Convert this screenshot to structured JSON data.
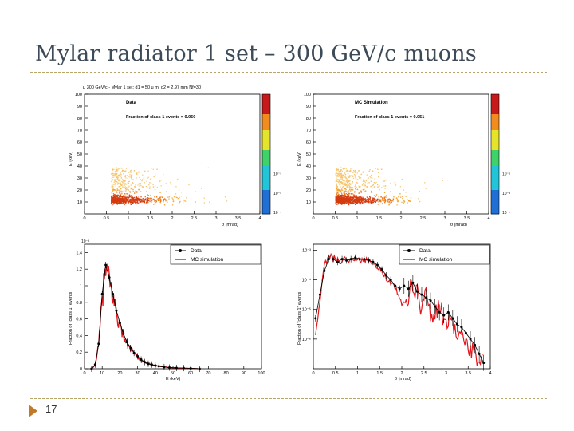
{
  "slide": {
    "title": "Mylar radiator 1 set – 300 GeV/c muons",
    "page_number": "17"
  },
  "colors": {
    "title": "#3d4a57",
    "rule": "#b9a46a",
    "arrow": "#c07a2a",
    "data_series": "#000000",
    "mc_series": "#e3161b"
  },
  "chart_data": [
    {
      "type": "heatmap",
      "panel_title": "μ 300 GeV/c - Mylar 1 set: d1 = 50 μ m, d2 = 2.97 mm Nf=30",
      "label": "Data",
      "fraction_text": "Fraction of class 1 events = 0.050",
      "xlabel": "θ (mrad)",
      "ylabel": "E (keV)",
      "xlim": [
        0,
        4
      ],
      "ylim": [
        0,
        100
      ],
      "x_ticks": [
        "0",
        "0.5",
        "1",
        "1.5",
        "2",
        "2.5",
        "3",
        "3.5",
        "4"
      ],
      "y_ticks": [
        "10",
        "20",
        "30",
        "40",
        "50",
        "60",
        "70",
        "80",
        "90",
        "100"
      ],
      "colorbar_labels": [
        "10⁻⁵",
        "10⁻⁶",
        "10⁻⁷"
      ],
      "colorbar_log_values": [
        -5,
        -6,
        -7
      ],
      "density_centre": {
        "theta": 0.6,
        "E": 12
      }
    },
    {
      "type": "heatmap",
      "label": "MC Simulation",
      "fraction_text": "Fraction of class 1 events = 0.051",
      "xlabel": "θ (mrad)",
      "ylabel": "E (keV)",
      "xlim": [
        0,
        4
      ],
      "ylim": [
        0,
        100
      ],
      "x_ticks": [
        "0",
        "0.5",
        "1",
        "1.5",
        "2",
        "2.5",
        "3",
        "3.5",
        "4"
      ],
      "y_ticks": [
        "10",
        "20",
        "30",
        "40",
        "50",
        "60",
        "70",
        "80",
        "90",
        "100"
      ],
      "colorbar_labels": [
        "10⁻⁵",
        "10⁻⁶",
        "10⁻⁷"
      ],
      "colorbar_log_values": [
        -5,
        -6,
        -7
      ],
      "density_centre": {
        "theta": 0.5,
        "E": 12
      }
    },
    {
      "type": "line",
      "xlabel": "E (keV)",
      "ylabel": "Fraction of \"class 1\" events",
      "y_multiplier": "10⁻³",
      "xlim": [
        0,
        100
      ],
      "ylim": [
        0,
        0.0015
      ],
      "x_ticks": [
        "0",
        "10",
        "20",
        "30",
        "40",
        "50",
        "60",
        "70",
        "80",
        "90",
        "100"
      ],
      "y_ticks": [
        "0",
        "0.2",
        "0.4",
        "0.6",
        "0.8",
        "1",
        "1.2",
        "1.4"
      ],
      "legend": [
        "Data",
        "MC simulation"
      ],
      "series": [
        {
          "name": "Data",
          "x": [
            4,
            6,
            8,
            10,
            12,
            14,
            16,
            18,
            20,
            22,
            24,
            26,
            28,
            30,
            32,
            34,
            36,
            38,
            40,
            42,
            45,
            48,
            52,
            56,
            60,
            65
          ],
          "values": [
            0.0,
            5e-05,
            0.0003,
            0.0009,
            0.00125,
            0.0011,
            0.0009,
            0.0007,
            0.00055,
            0.00042,
            0.00032,
            0.00025,
            0.00019,
            0.00015,
            0.00011,
            8e-05,
            6e-05,
            5e-05,
            4e-05,
            3e-05,
            2e-05,
            1.5e-05,
            1e-05,
            8e-06,
            5e-06,
            0.0
          ]
        },
        {
          "name": "MC simulation",
          "x": [
            4,
            6,
            8,
            10,
            12,
            14,
            16,
            18,
            20,
            22,
            24,
            26,
            28,
            30,
            32,
            34,
            36,
            38,
            40,
            42,
            45,
            48,
            52,
            56,
            60,
            65
          ],
          "values": [
            0.0,
            4e-05,
            0.00028,
            0.00085,
            0.0012,
            0.00105,
            0.00088,
            0.00068,
            0.00052,
            0.0004,
            0.0003,
            0.00024,
            0.00018,
            0.00014,
            0.0001,
            8e-05,
            6e-05,
            5e-05,
            3.5e-05,
            3e-05,
            2e-05,
            1.5e-05,
            1e-05,
            6e-06,
            4e-06,
            0.0
          ]
        }
      ]
    },
    {
      "type": "line",
      "xlabel": "θ (mrad)",
      "ylabel": "Fraction of \"class 1\" events",
      "y_scale": "log",
      "xlim": [
        0,
        4
      ],
      "ylim_log10": [
        -7,
        -2.8
      ],
      "x_ticks": [
        "0",
        "0.5",
        "1",
        "1.5",
        "2",
        "2.5",
        "3",
        "3.5",
        "4"
      ],
      "y_ticks": [
        "10⁻³",
        "10⁻⁴",
        "10⁻⁵",
        "10⁻⁶"
      ],
      "y_tick_log_values": [
        -3,
        -4,
        -5,
        -6
      ],
      "legend": [
        "Data",
        "MC simulation"
      ],
      "series": [
        {
          "name": "Data",
          "x": [
            0.05,
            0.15,
            0.25,
            0.35,
            0.45,
            0.55,
            0.65,
            0.75,
            0.85,
            0.95,
            1.05,
            1.15,
            1.25,
            1.35,
            1.45,
            1.55,
            1.65,
            1.75,
            1.85,
            1.95,
            2.05,
            2.15,
            2.25,
            2.35,
            2.45,
            2.55,
            2.65,
            2.75,
            2.85,
            2.95,
            3.05,
            3.15,
            3.25,
            3.35,
            3.45,
            3.55,
            3.65,
            3.75,
            3.85
          ],
          "log10_values": [
            -5.3,
            -4.5,
            -3.7,
            -3.3,
            -3.3,
            -3.4,
            -3.3,
            -3.35,
            -3.3,
            -3.25,
            -3.3,
            -3.3,
            -3.35,
            -3.4,
            -3.5,
            -3.65,
            -3.85,
            -4.0,
            -4.2,
            -4.3,
            -4.2,
            -4.3,
            -4.1,
            -4.4,
            -4.5,
            -4.6,
            -4.7,
            -4.9,
            -5.1,
            -5.2,
            -5.1,
            -5.3,
            -5.5,
            -5.6,
            -5.8,
            -6.0,
            -6.2,
            -6.5,
            -6.8
          ]
        },
        {
          "name": "MC simulation",
          "x": [
            0.05,
            0.15,
            0.25,
            0.35,
            0.45,
            0.55,
            0.65,
            0.75,
            0.85,
            0.95,
            1.05,
            1.15,
            1.25,
            1.35,
            1.45,
            1.55,
            1.65,
            1.75,
            1.85,
            1.95,
            2.05,
            2.15,
            2.25,
            2.35,
            2.45,
            2.55,
            2.65,
            2.75,
            2.85,
            2.95,
            3.05,
            3.15,
            3.25,
            3.35,
            3.45,
            3.55,
            3.65,
            3.75,
            3.85
          ],
          "log10_values": [
            -5.8,
            -4.8,
            -3.5,
            -3.2,
            -3.3,
            -3.35,
            -3.35,
            -3.3,
            -3.35,
            -3.25,
            -3.35,
            -3.3,
            -3.4,
            -3.45,
            -3.55,
            -3.7,
            -3.9,
            -4.05,
            -4.3,
            -4.6,
            -5.0,
            -4.5,
            -4.2,
            -4.6,
            -4.8,
            -4.5,
            -5.0,
            -5.2,
            -5.0,
            -5.4,
            -5.6,
            -5.3,
            -5.7,
            -6.0,
            -5.9,
            -6.2,
            -6.4,
            -6.6,
            -6.9
          ]
        }
      ]
    }
  ]
}
